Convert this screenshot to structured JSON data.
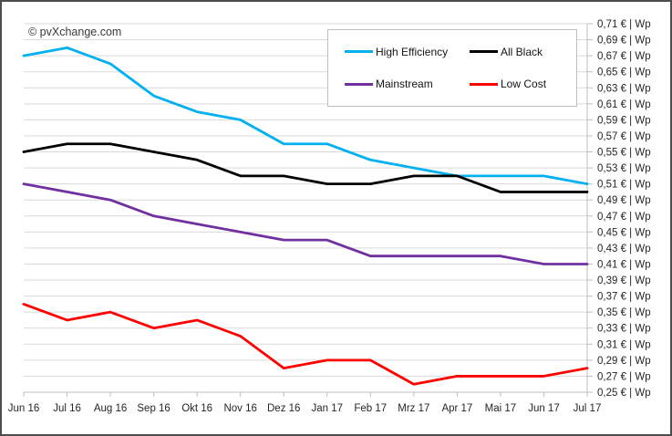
{
  "window": {
    "copyright": "© pvXchange.com"
  },
  "chart_data": {
    "type": "line",
    "title": "",
    "categories": [
      "Jun 16",
      "Jul 16",
      "Aug 16",
      "Sep 16",
      "Okt 16",
      "Nov 16",
      "Dez 16",
      "Jan 17",
      "Feb 17",
      "Mrz 17",
      "Apr 17",
      "Mai 17",
      "Jun 17",
      "Jul 17"
    ],
    "series": [
      {
        "name": "High Efficiency",
        "color": "#00B0F0",
        "values": [
          0.67,
          0.68,
          0.66,
          0.62,
          0.6,
          0.59,
          0.56,
          0.56,
          0.54,
          0.53,
          0.52,
          0.52,
          0.52,
          0.51
        ]
      },
      {
        "name": "All Black",
        "color": "#000000",
        "values": [
          0.55,
          0.56,
          0.56,
          0.55,
          0.54,
          0.52,
          0.52,
          0.51,
          0.51,
          0.52,
          0.52,
          0.5,
          0.5,
          0.5
        ]
      },
      {
        "name": "Mainstream",
        "color": "#7030A0",
        "values": [
          0.51,
          0.5,
          0.49,
          0.47,
          0.46,
          0.45,
          0.44,
          0.44,
          0.42,
          0.42,
          0.42,
          0.42,
          0.41,
          0.41
        ]
      },
      {
        "name": "Low Cost",
        "color": "#FF0000",
        "values": [
          0.36,
          0.34,
          0.35,
          0.33,
          0.34,
          0.32,
          0.28,
          0.29,
          0.29,
          0.26,
          0.27,
          0.27,
          0.27,
          0.28
        ]
      }
    ],
    "y_axis": {
      "side": "right",
      "min": 0.25,
      "max": 0.71,
      "step": 0.02,
      "unit": "€ | Wp",
      "tick_labels": [
        "0,71 € | Wp",
        "0,69 € | Wp",
        "0,67 € | Wp",
        "0,65 € | Wp",
        "0,63 € | Wp",
        "0,61 € | Wp",
        "0,59 € | Wp",
        "0,57 € | Wp",
        "0,55 € | Wp",
        "0,53 € | Wp",
        "0,51 € | Wp",
        "0,49 € | Wp",
        "0,47 € | Wp",
        "0,45 € | Wp",
        "0,43 € | Wp",
        "0,41 € | Wp",
        "0,39 € | Wp",
        "0,37 € | Wp",
        "0,35 € | Wp",
        "0,33 € | Wp",
        "0,31 € | Wp",
        "0,29 € | Wp",
        "0,27 € | Wp",
        "0,25 € | Wp"
      ]
    },
    "x_axis": {
      "tick_labels": [
        "Jun 16",
        "Jul 16",
        "Aug 16",
        "Sep 16",
        "Okt 16",
        "Nov 16",
        "Dez 16",
        "Jan 17",
        "Feb 17",
        "Mrz 17",
        "Apr 17",
        "Mai 17",
        "Jun 17",
        "Jul 17"
      ]
    },
    "legend": {
      "position": "top-center",
      "entries": [
        "High Efficiency",
        "All Black",
        "Mainstream",
        "Low Cost"
      ]
    },
    "grid": true,
    "colors": {
      "gridline": "#D9D9D9",
      "axis_line": "#BFBFBF",
      "tick_text": "#262626",
      "background": "#FFFFFF",
      "frame_border": "#4D4D4D"
    }
  }
}
